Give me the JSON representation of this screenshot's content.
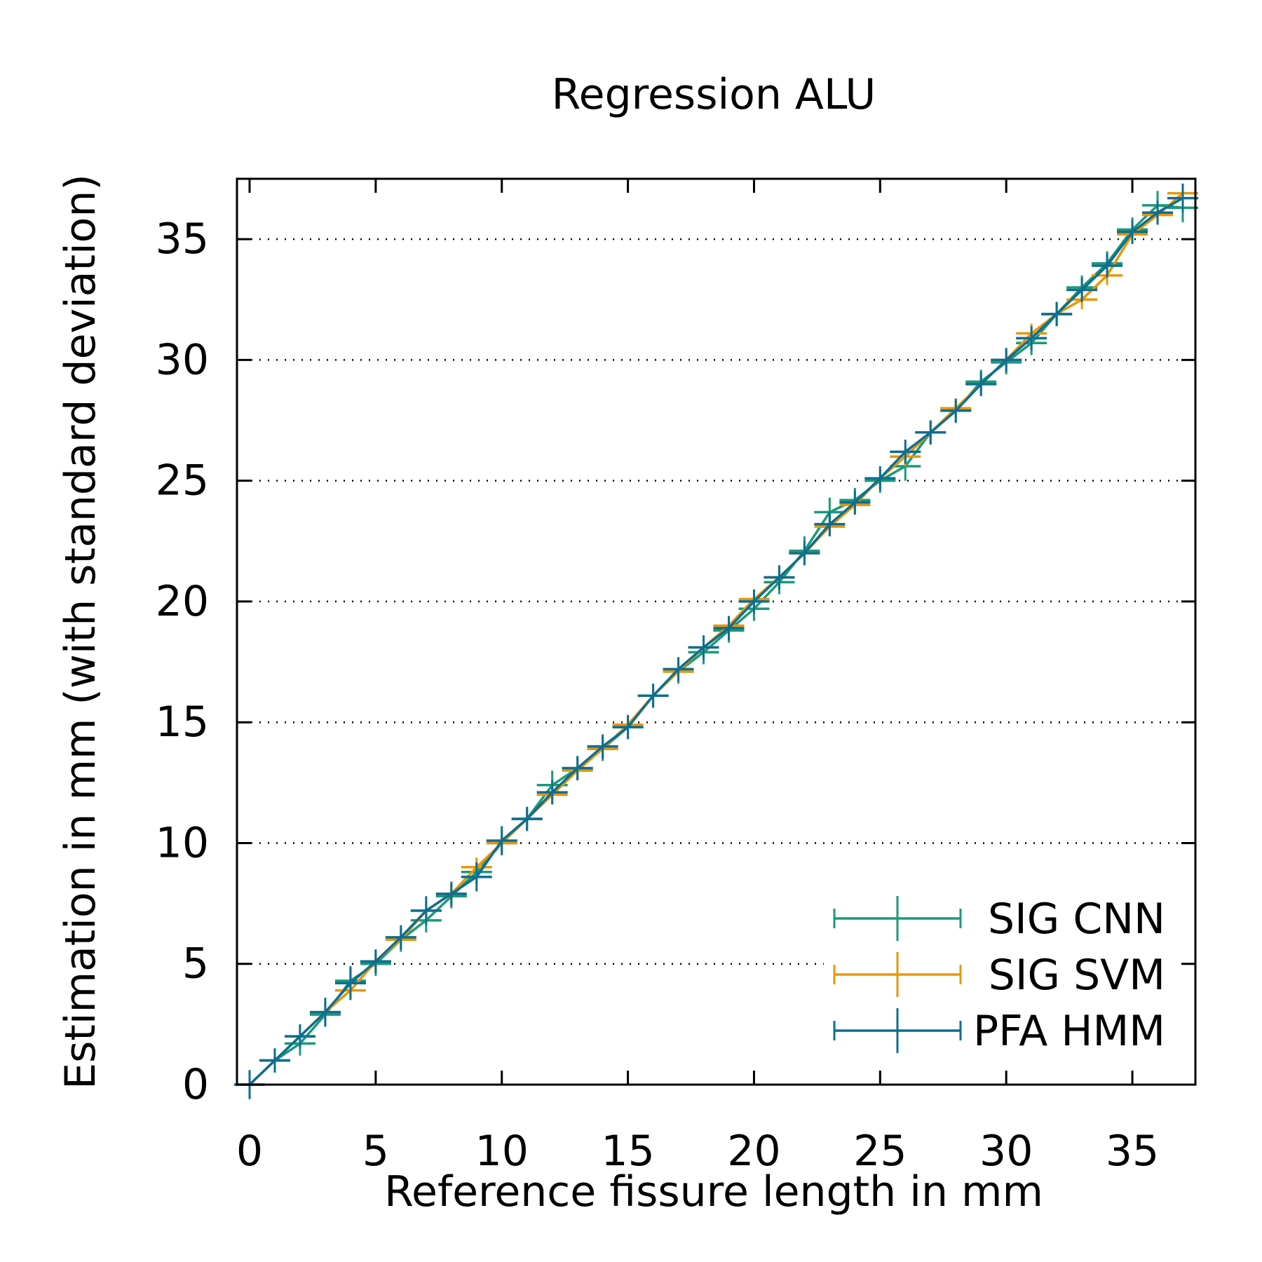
{
  "chart_data": {
    "type": "line",
    "title": "Regression ALU",
    "xlabel": "Reference fissure length in mm",
    "ylabel": "Estimation in mm (with standard deviation)",
    "xlim": [
      -0.5,
      37.5
    ],
    "ylim": [
      0,
      37.5
    ],
    "xticks": [
      0,
      5,
      10,
      15,
      20,
      25,
      30,
      35
    ],
    "yticks": [
      0,
      5,
      10,
      15,
      20,
      25,
      30,
      35
    ],
    "grid": {
      "y": true,
      "x": false,
      "style": "dotted"
    },
    "legend_position": "bottom-right",
    "x": [
      0,
      1,
      2,
      3,
      4,
      5,
      6,
      7,
      8,
      9,
      10,
      11,
      12,
      13,
      14,
      15,
      16,
      17,
      18,
      19,
      20,
      21,
      22,
      23,
      24,
      25,
      26,
      27,
      28,
      29,
      30,
      31,
      32,
      33,
      34,
      35,
      36,
      37
    ],
    "series": [
      {
        "name": "SIG CNN",
        "color": "#1a9a78",
        "y": [
          0.0,
          1.0,
          1.7,
          2.9,
          4.3,
          5.0,
          6.0,
          6.8,
          7.8,
          8.8,
          10.0,
          11.0,
          12.4,
          13.1,
          13.9,
          14.8,
          16.1,
          17.1,
          17.9,
          18.8,
          19.7,
          20.8,
          22.1,
          23.7,
          24.2,
          25.0,
          25.6,
          27.0,
          27.9,
          29.1,
          29.9,
          30.7,
          31.9,
          33.0,
          34.0,
          35.4,
          36.4,
          36.3
        ],
        "err": [
          0.6,
          0.5,
          0.5,
          0.5,
          0.5,
          0.5,
          0.5,
          0.5,
          0.5,
          0.5,
          0.5,
          0.5,
          0.6,
          0.5,
          0.5,
          0.5,
          0.5,
          0.5,
          0.5,
          0.5,
          0.5,
          0.5,
          0.6,
          0.6,
          0.5,
          0.5,
          0.6,
          0.5,
          0.5,
          0.5,
          0.5,
          0.5,
          0.5,
          0.5,
          0.5,
          0.5,
          0.6,
          0.6
        ]
      },
      {
        "name": "SIG SVM",
        "color": "#e8960a",
        "y": [
          0.0,
          1.0,
          2.0,
          3.0,
          3.9,
          5.1,
          6.0,
          7.2,
          7.9,
          9.0,
          10.0,
          11.0,
          12.0,
          13.0,
          13.9,
          14.9,
          16.1,
          17.1,
          18.1,
          19.0,
          20.1,
          21.0,
          22.0,
          23.1,
          24.0,
          25.1,
          26.0,
          27.0,
          28.0,
          29.0,
          30.0,
          31.1,
          31.9,
          32.5,
          33.5,
          35.2,
          36.0,
          36.9
        ],
        "err": [
          0.5,
          0.4,
          0.4,
          0.4,
          0.4,
          0.4,
          0.4,
          0.4,
          0.4,
          0.4,
          0.4,
          0.4,
          0.4,
          0.4,
          0.4,
          0.4,
          0.4,
          0.4,
          0.4,
          0.4,
          0.4,
          0.4,
          0.4,
          0.4,
          0.4,
          0.4,
          0.4,
          0.4,
          0.4,
          0.4,
          0.4,
          0.4,
          0.4,
          0.4,
          0.4,
          0.4,
          0.4,
          0.4
        ]
      },
      {
        "name": "PFA HMM",
        "color": "#0e6e91",
        "y": [
          0.0,
          1.0,
          2.0,
          3.0,
          4.2,
          5.1,
          6.1,
          7.2,
          7.9,
          8.6,
          10.1,
          11.0,
          12.1,
          13.1,
          14.0,
          14.8,
          16.1,
          17.2,
          18.1,
          18.9,
          20.0,
          21.0,
          22.0,
          23.2,
          24.1,
          25.1,
          26.2,
          27.0,
          27.9,
          29.0,
          30.0,
          30.9,
          31.9,
          32.9,
          33.9,
          35.3,
          36.1,
          36.7
        ],
        "err": [
          0.6,
          0.5,
          0.5,
          0.6,
          0.7,
          0.5,
          0.5,
          0.6,
          0.5,
          0.6,
          0.6,
          0.5,
          0.5,
          0.5,
          0.5,
          0.5,
          0.5,
          0.5,
          0.5,
          0.5,
          0.5,
          0.5,
          0.5,
          0.5,
          0.5,
          0.5,
          0.5,
          0.5,
          0.5,
          0.5,
          0.5,
          0.5,
          0.5,
          0.5,
          0.5,
          0.5,
          0.5,
          0.6
        ]
      }
    ]
  }
}
